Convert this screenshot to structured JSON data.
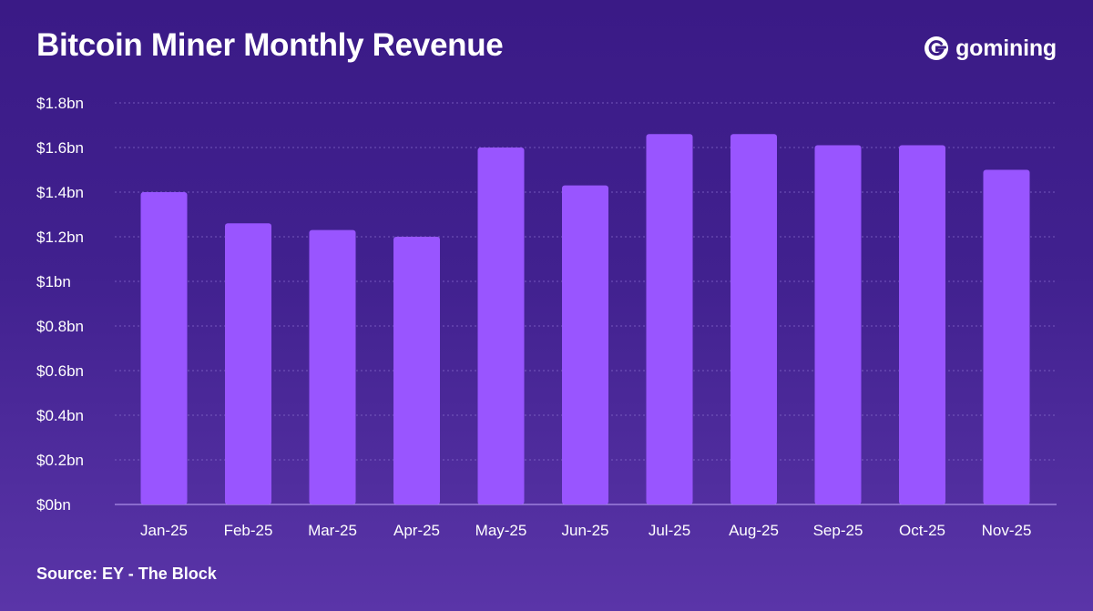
{
  "header": {
    "title": "Bitcoin Miner Monthly Revenue",
    "brand": "gomining"
  },
  "footer": {
    "source": "Source: EY - The Block"
  },
  "colors": {
    "bar": "#9955ff",
    "gridline": "#8a6fcf",
    "baseline": "#b59bf0"
  },
  "icons": {
    "brand": "gomining-logo-icon"
  },
  "chart_data": {
    "type": "bar",
    "title": "Bitcoin Miner Monthly Revenue",
    "xlabel": "",
    "ylabel": "",
    "unit": "$bn",
    "categories": [
      "Jan-25",
      "Feb-25",
      "Mar-25",
      "Apr-25",
      "May-25",
      "Jun-25",
      "Jul-25",
      "Aug-25",
      "Sep-25",
      "Oct-25",
      "Nov-25"
    ],
    "values": [
      1.4,
      1.26,
      1.23,
      1.2,
      1.6,
      1.43,
      1.66,
      1.66,
      1.61,
      1.61,
      1.5
    ],
    "ylim": [
      0,
      1.8
    ],
    "yticks": [
      0,
      0.2,
      0.4,
      0.6,
      0.8,
      1.0,
      1.2,
      1.4,
      1.6,
      1.8
    ],
    "ytick_labels": [
      "$0bn",
      "$0.2bn",
      "$0.4bn",
      "$0.6bn",
      "$0.8bn",
      "$1bn",
      "$1.2bn",
      "$1.4bn",
      "$1.6bn",
      "$1.8bn"
    ],
    "grid": true,
    "legend": "none"
  }
}
